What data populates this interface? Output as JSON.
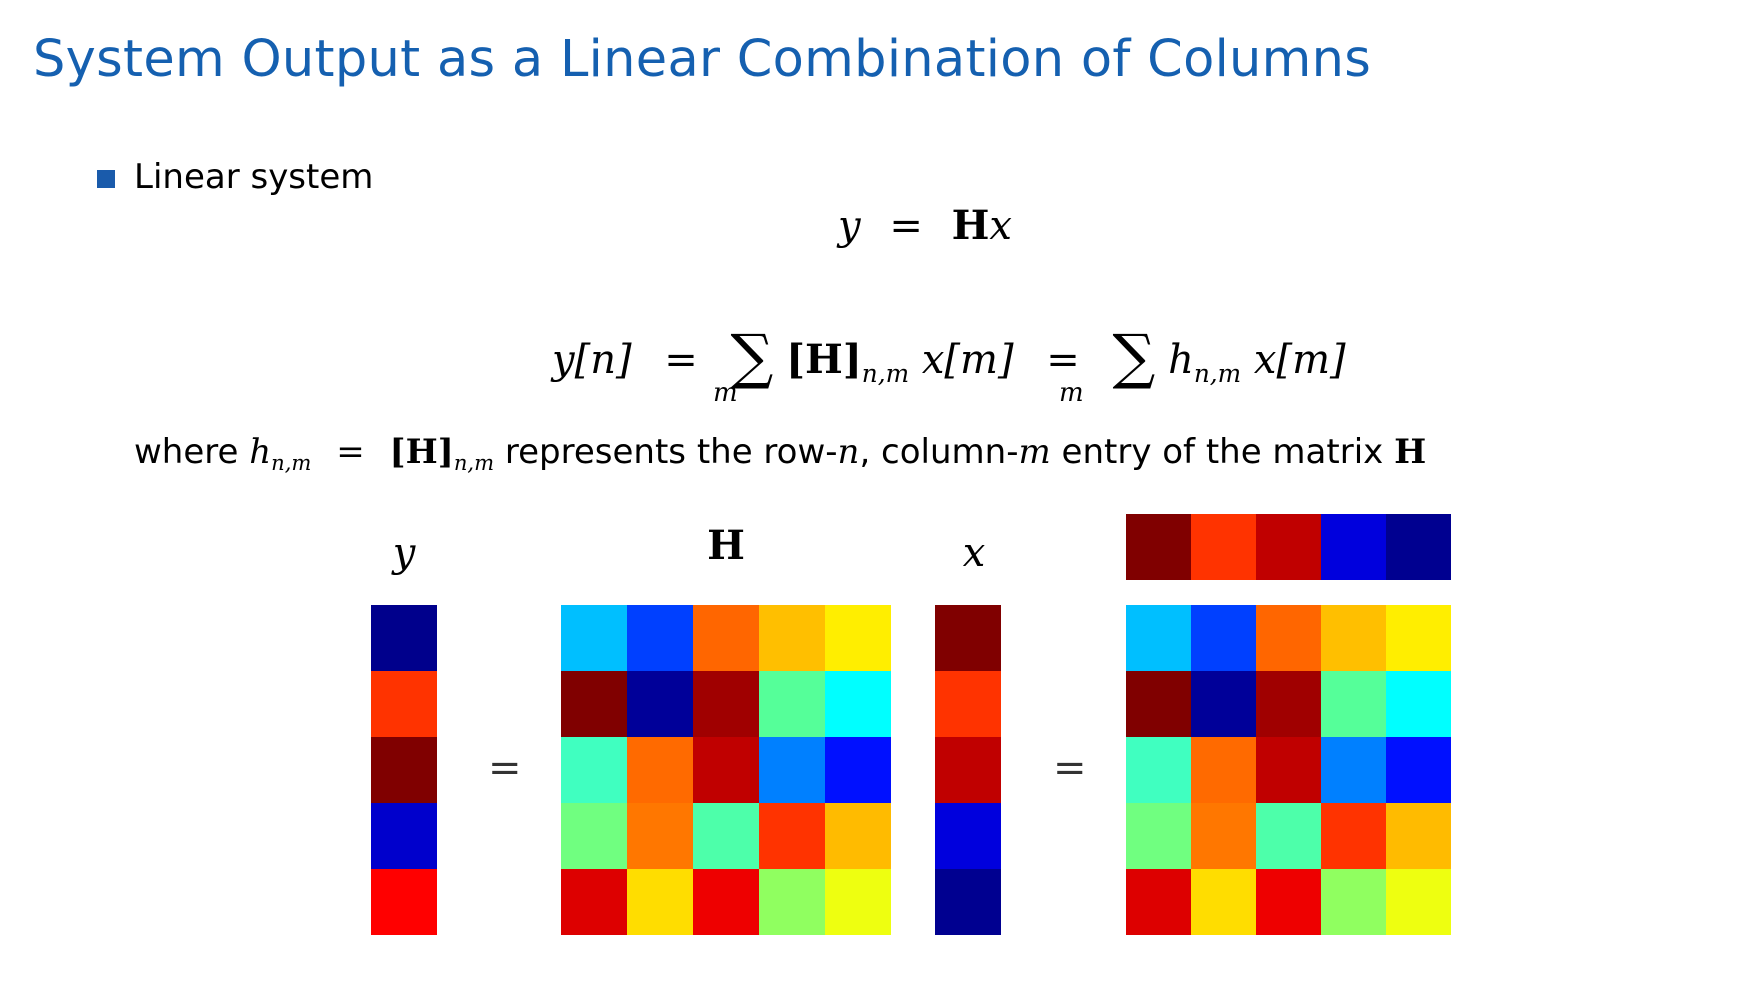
{
  "title": "System Output as a Linear Combination of Columns",
  "bullet": "Linear system",
  "equation1": {
    "lhs": "y",
    "eq": "=",
    "matrix": "H",
    "vec": "x"
  },
  "equation2": {
    "lhs": "y[n]",
    "eq1": "=",
    "sigma1": "∑",
    "under1": "m",
    "mid_bracket": "[H]",
    "mid_sub": "n,m",
    "mid_x": "x[m]",
    "eq2": "=",
    "sigma2": "∑",
    "under2": "m",
    "h": "h",
    "h_sub": "n,m",
    "rhs_x": "x[m]"
  },
  "where": {
    "w1": "where ",
    "h": "h",
    "h_sub": "n,m",
    "eq": " = ",
    "bracket": "[H]",
    "bracket_sub": "n,m",
    "t1": " represents the row-",
    "n": "n",
    "t2": ", column-",
    "m": "m",
    "t3": " entry of the matrix ",
    "H": "H"
  },
  "labels": {
    "y": "y",
    "H": "H",
    "x": "x",
    "eq_a": "=",
    "eq_b": "="
  },
  "matrices": {
    "y": [
      "#00008c",
      "#ff3300",
      "#800000",
      "#0000cc",
      "#ff0000"
    ],
    "H": [
      [
        "#00bfff",
        "#0040ff",
        "#ff6600",
        "#ffbf00",
        "#ffee00"
      ],
      [
        "#800000",
        "#000099",
        "#a00000",
        "#55ff99",
        "#00ffff"
      ],
      [
        "#40ffc0",
        "#ff6a00",
        "#c00000",
        "#0080ff",
        "#0010ff"
      ],
      [
        "#70ff80",
        "#ff7700",
        "#4dffaa",
        "#ff3300",
        "#ffbb00"
      ],
      [
        "#dd0000",
        "#ffdd00",
        "#ee0000",
        "#90ff60",
        "#eeff10"
      ]
    ],
    "x": [
      "#800000",
      "#ff3300",
      "#c00000",
      "#0000dd",
      "#000090"
    ],
    "x_row": [
      "#800000",
      "#ff3300",
      "#c00000",
      "#0000dd",
      "#000090"
    ]
  }
}
